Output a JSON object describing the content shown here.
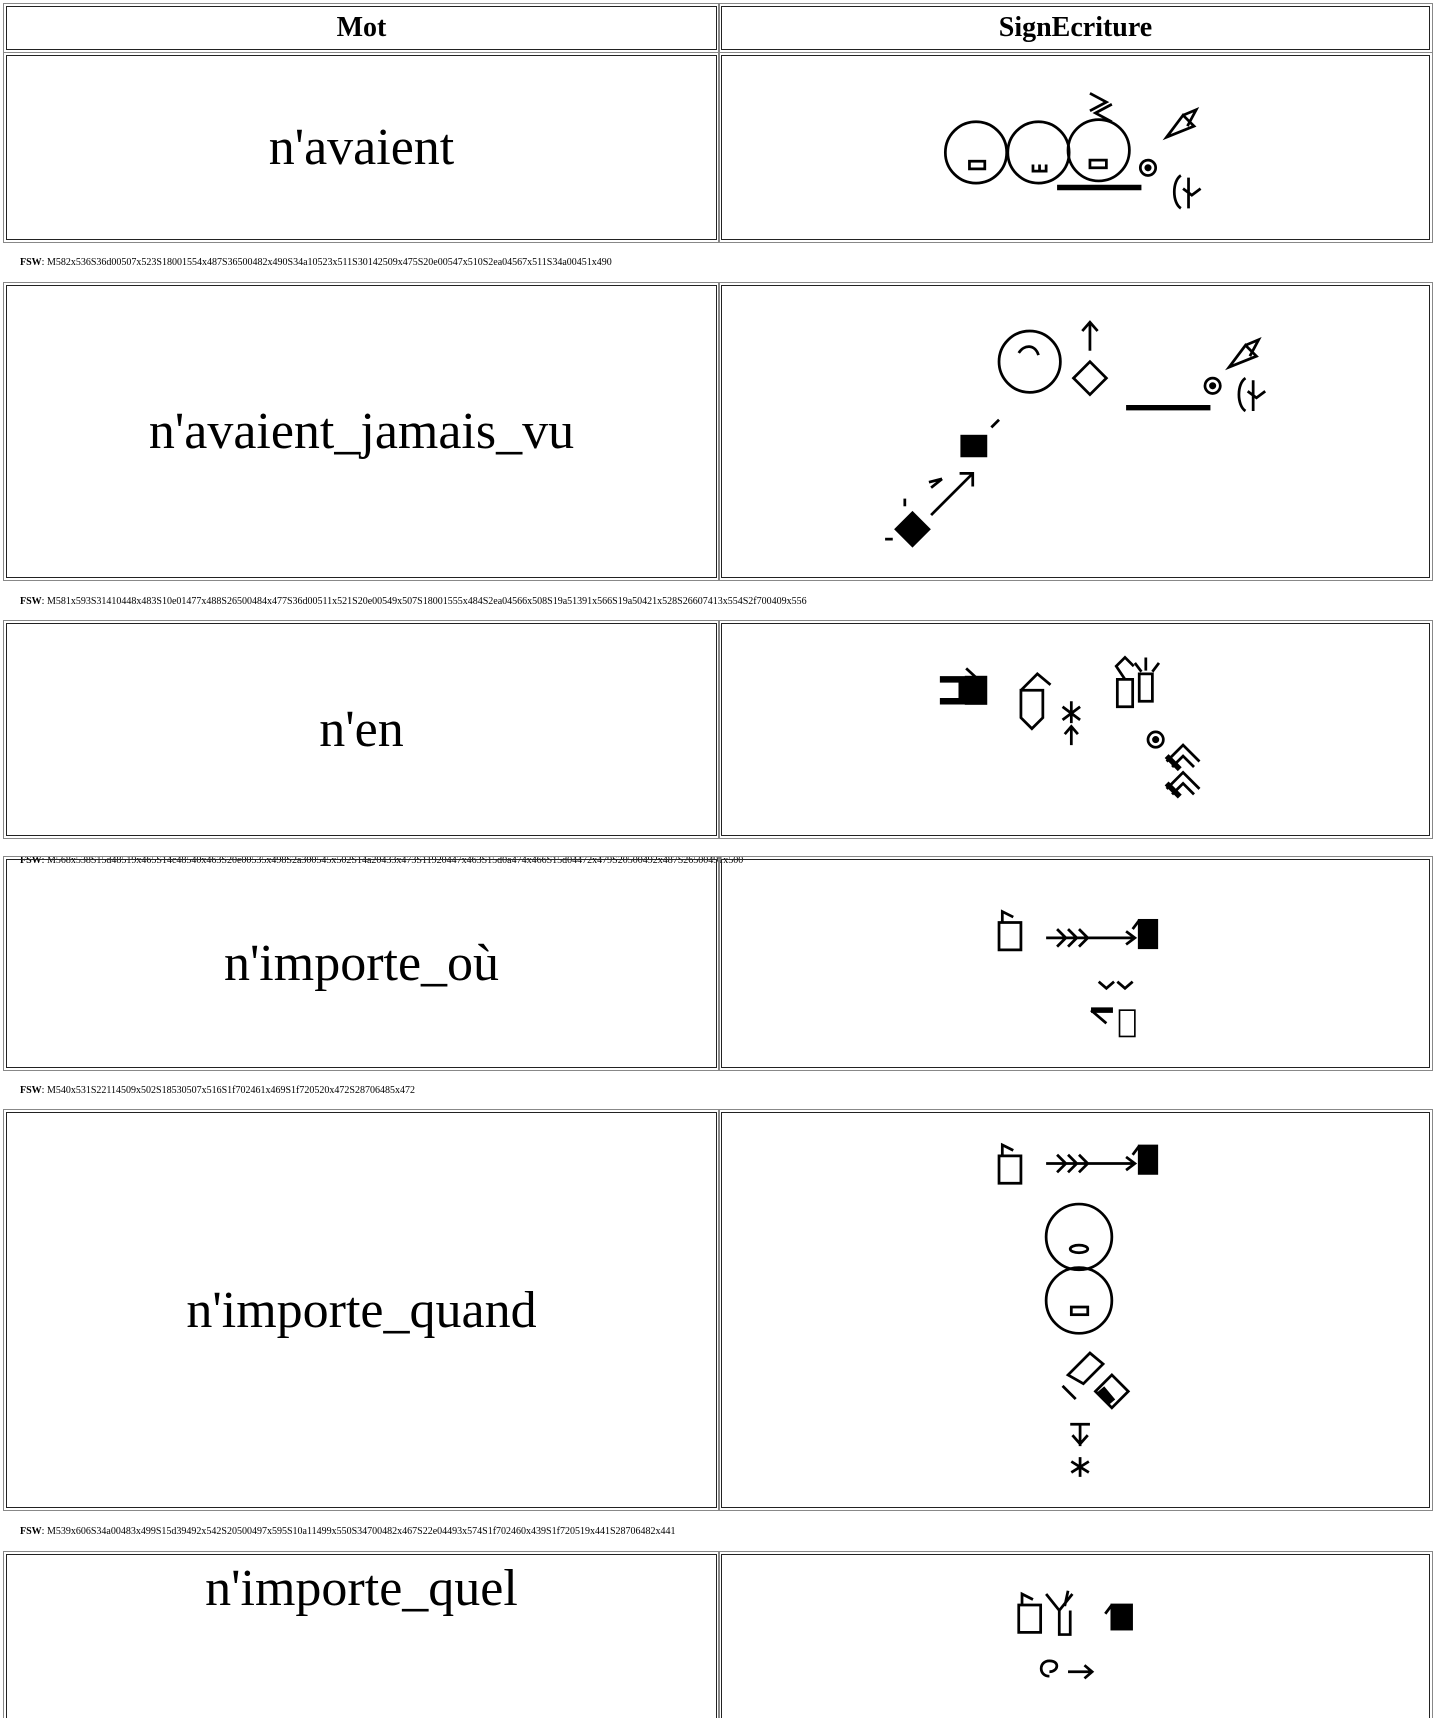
{
  "table": {
    "headers": [
      "Mot",
      "SignEcriture"
    ],
    "fsw_label": "FSW",
    "fsw_separator": ": ",
    "rows": [
      {
        "word": "n'avaient",
        "fsw": "M582x536S36d00507x523S18001554x487S36500482x490S34a10523x511S30142509x475S20e00547x510S2ea04567x511S34a00451x490"
      },
      {
        "word": "n'avaient_jamais_vu",
        "fsw": "M581x593S31410448x483S10e01477x488S26500484x477S36d00511x521S20e00549x507S18001555x484S2ea04566x508S19a51391x566S19a50421x528S26607413x554S2f700409x556"
      },
      {
        "word": "n'en",
        "fsw": "M568x538S15d48519x465S14c48540x463S20e00535x498S2a300545x502S14a20433x473S11920447x463S15d0a474x466S15d04472x479S20500492x487S26500491x500"
      },
      {
        "word": "n'importe_où",
        "fsw": "M540x531S22114509x502S18530507x516S1f702461x469S1f720520x472S28706485x472"
      },
      {
        "word": "n'importe_quand",
        "fsw": "M539x606S34a00483x499S15d39492x542S20500497x595S10a11499x550S34700482x467S22e04493x574S1f702460x439S1f720519x441S28706482x441"
      },
      {
        "word": "n'importe_quel"
      }
    ]
  }
}
